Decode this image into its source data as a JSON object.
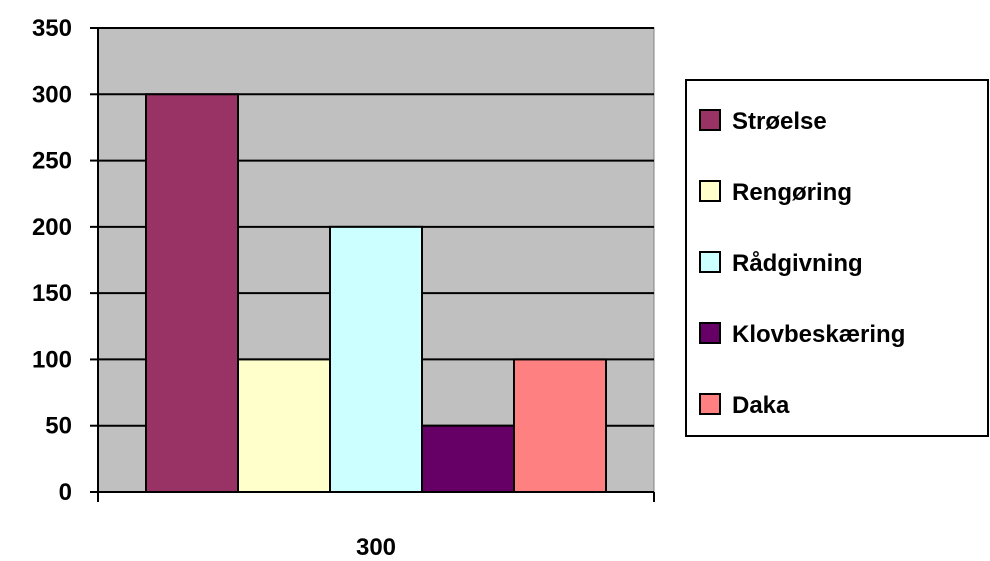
{
  "chart_data": {
    "type": "bar",
    "categories": [
      "300"
    ],
    "series": [
      {
        "name": "Strøelse",
        "values": [
          300
        ],
        "color": "#993366"
      },
      {
        "name": "Rengøring",
        "values": [
          100
        ],
        "color": "#FFFFCC"
      },
      {
        "name": "Rådgivning",
        "values": [
          200
        ],
        "color": "#CCFFFF"
      },
      {
        "name": "Klovbeskæring",
        "values": [
          50
        ],
        "color": "#660066"
      },
      {
        "name": "Daka",
        "values": [
          100
        ],
        "color": "#FF8080"
      }
    ],
    "yticks": [
      "0",
      "50",
      "100",
      "150",
      "200",
      "250",
      "300",
      "350"
    ],
    "ylim": [
      0,
      350
    ],
    "grid": true,
    "legend_position": "right",
    "plot_background": "#C0C0C0"
  }
}
